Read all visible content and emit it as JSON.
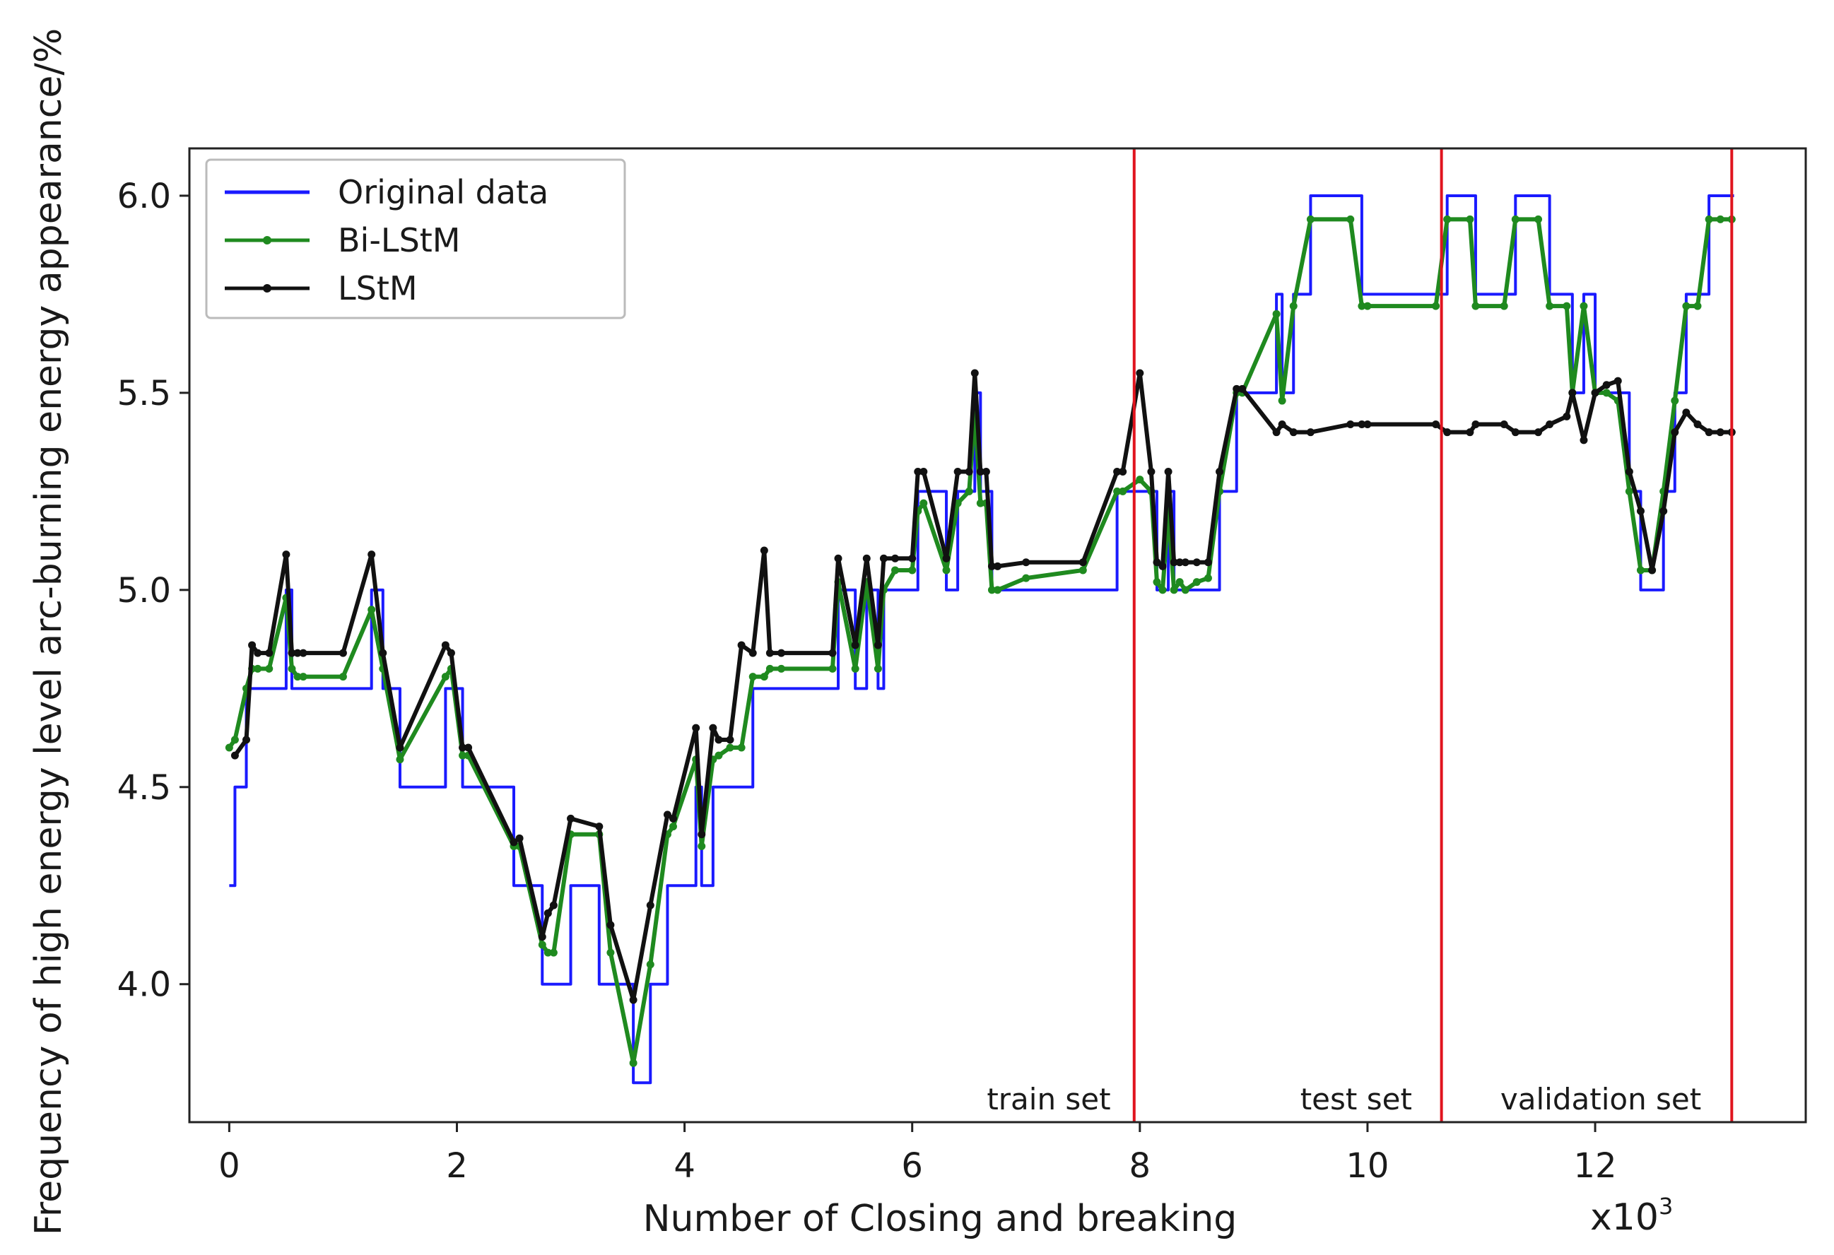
{
  "chart_data": {
    "type": "line",
    "xlabel": "Number of Closing and breaking",
    "x_multiplier_label": "x10",
    "x_multiplier_exp": "3",
    "ylabel": "Frequency of high energy level arc-burning energy appearance/%",
    "xlim": [
      -0.35,
      13.85
    ],
    "ylim": [
      3.65,
      6.12
    ],
    "x_ticks": [
      0,
      2,
      4,
      6,
      8,
      10,
      12
    ],
    "x_tick_labels": [
      "0",
      "2",
      "4",
      "6",
      "8",
      "10",
      "12"
    ],
    "y_ticks": [
      4.0,
      4.5,
      5.0,
      5.5,
      6.0
    ],
    "y_tick_labels": [
      "4.0",
      "4.5",
      "5.0",
      "5.5",
      "6.0"
    ],
    "grid": false,
    "legend_position": "top-left",
    "split_lines_x": [
      7.95,
      10.65,
      13.2
    ],
    "split_color": "#e0141e",
    "regions": [
      {
        "label": "train set",
        "x": 7.2
      },
      {
        "label": "test set",
        "x": 9.9
      },
      {
        "label": "validation set",
        "x": 12.05
      }
    ],
    "series": [
      {
        "name": "Original data",
        "color": "#1a1aff",
        "step": true,
        "x": [
          0.0,
          0.05,
          0.15,
          0.2,
          0.25,
          0.35,
          0.5,
          0.55,
          0.6,
          0.65,
          1.0,
          1.25,
          1.35,
          1.5,
          1.9,
          1.95,
          2.05,
          2.1,
          2.5,
          2.55,
          2.75,
          2.8,
          2.85,
          3.0,
          3.25,
          3.35,
          3.55,
          3.7,
          3.85,
          3.9,
          4.1,
          4.15,
          4.25,
          4.3,
          4.4,
          4.5,
          4.6,
          4.7,
          4.75,
          4.85,
          5.3,
          5.35,
          5.5,
          5.6,
          5.7,
          5.75,
          5.85,
          6.0,
          6.05,
          6.1,
          6.3,
          6.4,
          6.5,
          6.55,
          6.6,
          6.65,
          6.7,
          6.75,
          7.0,
          7.5,
          7.8,
          7.85,
          8.0,
          8.1,
          8.15,
          8.2,
          8.25,
          8.3,
          8.35,
          8.4,
          8.5,
          8.6,
          8.7,
          8.85,
          8.9,
          9.2,
          9.25,
          9.35,
          9.5,
          9.85,
          9.95,
          10.0,
          10.6,
          10.7,
          10.9,
          10.95,
          11.2,
          11.3,
          11.5,
          11.6,
          11.75,
          11.8,
          11.9,
          12.0,
          12.1,
          12.2,
          12.3,
          12.4,
          12.5,
          12.6,
          12.7,
          12.8,
          12.9,
          13.0,
          13.1,
          13.2
        ],
        "values": [
          4.25,
          4.5,
          4.75,
          4.75,
          4.75,
          4.75,
          5.0,
          4.75,
          4.75,
          4.75,
          4.75,
          5.0,
          4.75,
          4.5,
          4.75,
          4.75,
          4.5,
          4.5,
          4.25,
          4.25,
          4.0,
          4.0,
          4.0,
          4.25,
          4.0,
          4.0,
          3.75,
          4.0,
          4.25,
          4.25,
          4.5,
          4.25,
          4.5,
          4.5,
          4.5,
          4.5,
          4.75,
          4.75,
          4.75,
          4.75,
          4.75,
          5.0,
          4.75,
          5.0,
          4.75,
          5.0,
          5.0,
          5.0,
          5.25,
          5.25,
          5.0,
          5.25,
          5.25,
          5.5,
          5.25,
          5.25,
          5.0,
          5.0,
          5.0,
          5.0,
          5.25,
          5.25,
          5.25,
          5.25,
          5.0,
          5.0,
          5.25,
          5.0,
          5.0,
          5.0,
          5.0,
          5.0,
          5.25,
          5.5,
          5.5,
          5.75,
          5.5,
          5.75,
          6.0,
          6.0,
          5.75,
          5.75,
          5.75,
          6.0,
          6.0,
          5.75,
          5.75,
          6.0,
          6.0,
          5.75,
          5.75,
          5.5,
          5.75,
          5.5,
          5.5,
          5.5,
          5.25,
          5.0,
          5.0,
          5.25,
          5.5,
          5.75,
          5.75,
          6.0,
          6.0,
          6.0
        ]
      },
      {
        "name": "Bi-LStM",
        "color": "#1f8a1f",
        "step": false,
        "markers": true,
        "x": [
          0.0,
          0.05,
          0.15,
          0.2,
          0.25,
          0.35,
          0.5,
          0.55,
          0.6,
          0.65,
          1.0,
          1.25,
          1.35,
          1.5,
          1.9,
          1.95,
          2.05,
          2.1,
          2.5,
          2.55,
          2.75,
          2.8,
          2.85,
          3.0,
          3.25,
          3.35,
          3.55,
          3.7,
          3.85,
          3.9,
          4.1,
          4.15,
          4.25,
          4.3,
          4.4,
          4.5,
          4.6,
          4.7,
          4.75,
          4.85,
          5.3,
          5.35,
          5.5,
          5.6,
          5.7,
          5.75,
          5.85,
          6.0,
          6.05,
          6.1,
          6.3,
          6.4,
          6.5,
          6.55,
          6.6,
          6.65,
          6.7,
          6.75,
          7.0,
          7.5,
          7.8,
          7.85,
          8.0,
          8.1,
          8.15,
          8.2,
          8.25,
          8.3,
          8.35,
          8.4,
          8.5,
          8.6,
          8.7,
          8.85,
          8.9,
          9.2,
          9.25,
          9.35,
          9.5,
          9.85,
          9.95,
          10.0,
          10.6,
          10.7,
          10.9,
          10.95,
          11.2,
          11.3,
          11.5,
          11.6,
          11.75,
          11.8,
          11.9,
          12.0,
          12.1,
          12.2,
          12.3,
          12.4,
          12.5,
          12.6,
          12.7,
          12.8,
          12.9,
          13.0,
          13.1,
          13.2
        ],
        "values": [
          4.6,
          4.62,
          4.75,
          4.8,
          4.8,
          4.8,
          4.98,
          4.8,
          4.78,
          4.78,
          4.78,
          4.95,
          4.8,
          4.57,
          4.78,
          4.8,
          4.58,
          4.58,
          4.35,
          4.35,
          4.1,
          4.08,
          4.08,
          4.38,
          4.38,
          4.08,
          3.8,
          4.05,
          4.38,
          4.4,
          4.57,
          4.35,
          4.57,
          4.58,
          4.6,
          4.6,
          4.78,
          4.78,
          4.8,
          4.8,
          4.8,
          5.02,
          4.8,
          5.02,
          4.8,
          5.0,
          5.05,
          5.05,
          5.2,
          5.22,
          5.05,
          5.22,
          5.25,
          5.45,
          5.22,
          5.22,
          5.0,
          5.0,
          5.03,
          5.05,
          5.25,
          5.25,
          5.28,
          5.25,
          5.02,
          5.0,
          5.2,
          5.0,
          5.02,
          5.0,
          5.02,
          5.03,
          5.25,
          5.5,
          5.5,
          5.7,
          5.48,
          5.72,
          5.94,
          5.94,
          5.72,
          5.72,
          5.72,
          5.94,
          5.94,
          5.72,
          5.72,
          5.94,
          5.94,
          5.72,
          5.72,
          5.5,
          5.72,
          5.5,
          5.5,
          5.48,
          5.25,
          5.05,
          5.05,
          5.25,
          5.48,
          5.72,
          5.72,
          5.94,
          5.94,
          5.94
        ]
      },
      {
        "name": "LStM",
        "color": "#111111",
        "step": false,
        "markers": true,
        "x": [
          0.05,
          0.15,
          0.2,
          0.25,
          0.35,
          0.5,
          0.55,
          0.6,
          0.65,
          1.0,
          1.25,
          1.35,
          1.5,
          1.9,
          1.95,
          2.05,
          2.1,
          2.5,
          2.55,
          2.75,
          2.8,
          2.85,
          3.0,
          3.25,
          3.35,
          3.55,
          3.7,
          3.85,
          3.9,
          4.1,
          4.15,
          4.25,
          4.3,
          4.4,
          4.5,
          4.6,
          4.7,
          4.75,
          4.85,
          5.3,
          5.35,
          5.5,
          5.6,
          5.7,
          5.75,
          5.85,
          6.0,
          6.05,
          6.1,
          6.3,
          6.4,
          6.5,
          6.55,
          6.6,
          6.65,
          6.7,
          6.75,
          7.0,
          7.5,
          7.8,
          7.85,
          8.0,
          8.1,
          8.15,
          8.2,
          8.25,
          8.3,
          8.35,
          8.4,
          8.5,
          8.6,
          8.7,
          8.85,
          8.9,
          9.2,
          9.25,
          9.35,
          9.5,
          9.85,
          9.95,
          10.0,
          10.6,
          10.7,
          10.9,
          10.95,
          11.2,
          11.3,
          11.5,
          11.6,
          11.75,
          11.8,
          11.9,
          12.0,
          12.1,
          12.2,
          12.3,
          12.4,
          12.5,
          12.6,
          12.7,
          12.8,
          12.9,
          13.0,
          13.1,
          13.2
        ],
        "values": [
          4.58,
          4.62,
          4.86,
          4.84,
          4.84,
          5.09,
          4.84,
          4.84,
          4.84,
          4.84,
          5.09,
          4.84,
          4.6,
          4.86,
          4.84,
          4.6,
          4.6,
          4.36,
          4.37,
          4.12,
          4.18,
          4.2,
          4.42,
          4.4,
          4.15,
          3.96,
          4.2,
          4.43,
          4.42,
          4.65,
          4.38,
          4.65,
          4.62,
          4.62,
          4.86,
          4.84,
          5.1,
          4.84,
          4.84,
          4.84,
          5.08,
          4.86,
          5.08,
          4.86,
          5.08,
          5.08,
          5.08,
          5.3,
          5.3,
          5.08,
          5.3,
          5.3,
          5.55,
          5.3,
          5.3,
          5.06,
          5.06,
          5.07,
          5.07,
          5.3,
          5.3,
          5.55,
          5.3,
          5.07,
          5.06,
          5.3,
          5.07,
          5.07,
          5.07,
          5.07,
          5.07,
          5.3,
          5.51,
          5.51,
          5.4,
          5.42,
          5.4,
          5.4,
          5.42,
          5.42,
          5.42,
          5.42,
          5.4,
          5.4,
          5.42,
          5.42,
          5.4,
          5.4,
          5.42,
          5.44,
          5.5,
          5.38,
          5.5,
          5.52,
          5.53,
          5.3,
          5.2,
          5.05,
          5.2,
          5.4,
          5.45,
          5.42,
          5.4,
          5.4,
          5.4
        ]
      }
    ]
  }
}
